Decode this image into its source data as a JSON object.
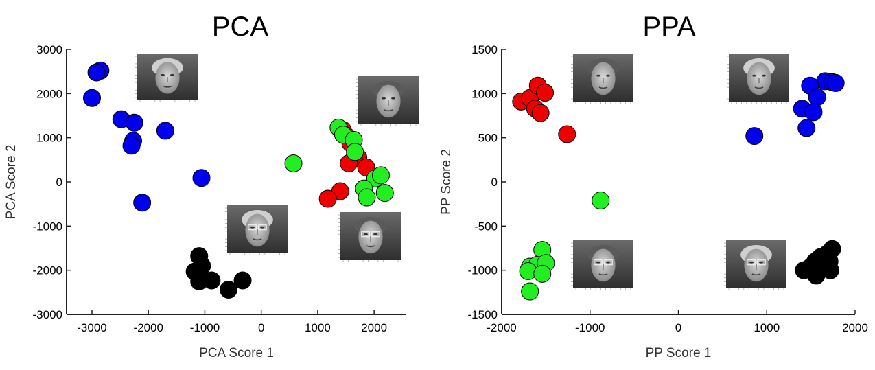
{
  "chart_data": [
    {
      "type": "scatter",
      "title": "PCA",
      "xlabel": "PCA Score 1",
      "ylabel": "PCA Score 2",
      "xlim": [
        -3450,
        2570
      ],
      "ylim": [
        -3000,
        3000
      ],
      "xticks": [
        -3000,
        -2000,
        -1000,
        0,
        1000,
        2000
      ],
      "yticks": [
        -3000,
        -2000,
        -1000,
        0,
        1000,
        2000,
        3000
      ],
      "xtick_labels": [
        "-3000",
        "-2000",
        "-1000",
        "0",
        "1000",
        "2000"
      ],
      "ytick_labels": [
        "-3000",
        "-2000",
        "-1000",
        "0",
        "1000",
        "2000",
        "3000"
      ],
      "grid": false,
      "series": [
        {
          "color": "#0000ee",
          "points": [
            [
              -2850,
              2520
            ],
            [
              -2920,
              2480
            ],
            [
              -3000,
              1900
            ],
            [
              -2480,
              1420
            ],
            [
              -2250,
              1340
            ],
            [
              -1700,
              1160
            ],
            [
              -2270,
              930
            ],
            [
              -2300,
              820
            ],
            [
              -1060,
              90
            ],
            [
              -2110,
              -470
            ]
          ]
        },
        {
          "color": "#ee0000",
          "points": [
            [
              1440,
              1180
            ],
            [
              1500,
              1050
            ],
            [
              1580,
              880
            ],
            [
              1720,
              550
            ],
            [
              1640,
              520
            ],
            [
              1550,
              420
            ],
            [
              1860,
              330
            ],
            [
              1400,
              -210
            ],
            [
              1180,
              -380
            ]
          ]
        },
        {
          "color": "#22ee22",
          "points": [
            [
              570,
              420
            ],
            [
              1370,
              1230
            ],
            [
              1450,
              1070
            ],
            [
              1640,
              950
            ],
            [
              1660,
              680
            ],
            [
              2020,
              80
            ],
            [
              2120,
              150
            ],
            [
              1820,
              -150
            ],
            [
              2190,
              -250
            ],
            [
              1870,
              -350
            ]
          ]
        },
        {
          "color": "#000000",
          "points": [
            [
              -1100,
              -1680
            ],
            [
              -1050,
              -1900
            ],
            [
              -1180,
              -2030
            ],
            [
              -1100,
              -2250
            ],
            [
              -880,
              -2230
            ],
            [
              -580,
              -2440
            ],
            [
              -330,
              -2230
            ]
          ]
        }
      ],
      "images": [
        "face-thumbnail",
        "face-thumbnail",
        "face-thumbnail",
        "face-thumbnail"
      ]
    },
    {
      "type": "scatter",
      "title": "PPA",
      "xlabel": "PP Score 1",
      "ylabel": "PP Score 2",
      "xlim": [
        -2000,
        2000
      ],
      "ylim": [
        -1500,
        1500
      ],
      "xticks": [
        -2000,
        -1000,
        0,
        1000,
        2000
      ],
      "yticks": [
        -1500,
        -1000,
        -500,
        0,
        500,
        1000,
        1500
      ],
      "xtick_labels": [
        "-2000",
        "-1000",
        "0",
        "1000",
        "2000"
      ],
      "ytick_labels": [
        "-1500",
        "-1000",
        "-500",
        "0",
        "500",
        "1000",
        "1500"
      ],
      "grid": false,
      "series": [
        {
          "color": "#ee0000",
          "points": [
            [
              -1780,
              910
            ],
            [
              -1680,
              950
            ],
            [
              -1590,
              1090
            ],
            [
              -1510,
              1010
            ],
            [
              -1620,
              830
            ],
            [
              -1560,
              780
            ],
            [
              -1260,
              540
            ]
          ]
        },
        {
          "color": "#0000ee",
          "points": [
            [
              1660,
              1140
            ],
            [
              1740,
              1130
            ],
            [
              1780,
              1120
            ],
            [
              1490,
              1090
            ],
            [
              1570,
              960
            ],
            [
              1400,
              830
            ],
            [
              1530,
              790
            ],
            [
              1450,
              610
            ],
            [
              860,
              520
            ]
          ]
        },
        {
          "color": "#22ee22",
          "points": [
            [
              -880,
              -210
            ],
            [
              -1540,
              -770
            ],
            [
              -1680,
              -960
            ],
            [
              -1600,
              -960
            ],
            [
              -1600,
              -940
            ],
            [
              -1500,
              -920
            ],
            [
              -1700,
              -1010
            ],
            [
              -1540,
              -1040
            ],
            [
              -1680,
              -1240
            ]
          ]
        },
        {
          "color": "#000000",
          "points": [
            [
              1740,
              -760
            ],
            [
              1690,
              -810
            ],
            [
              1610,
              -850
            ],
            [
              1550,
              -900
            ],
            [
              1710,
              -900
            ],
            [
              1590,
              -930
            ],
            [
              1500,
              -960
            ],
            [
              1640,
              -970
            ],
            [
              1420,
              -1000
            ],
            [
              1720,
              -1000
            ],
            [
              1560,
              -1060
            ]
          ]
        }
      ],
      "images": [
        "face-thumbnail",
        "face-thumbnail",
        "face-thumbnail",
        "face-thumbnail"
      ]
    }
  ]
}
